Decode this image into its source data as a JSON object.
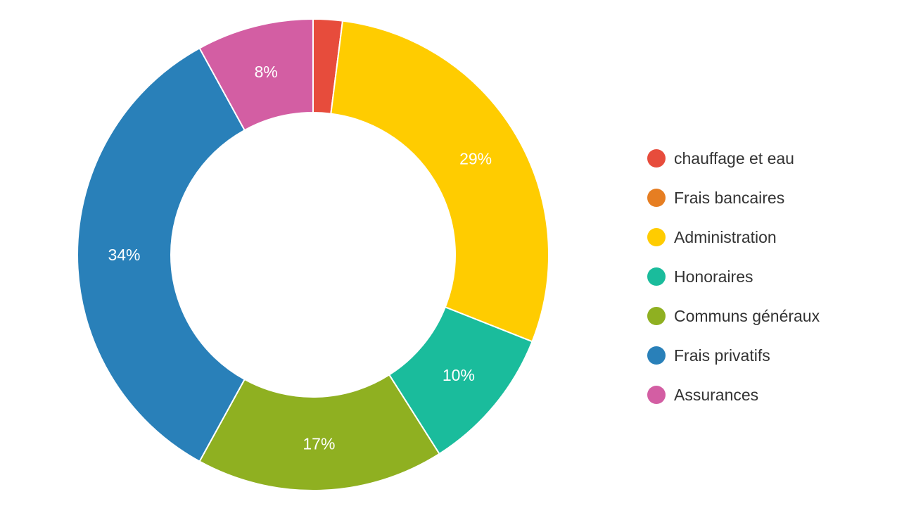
{
  "chart_data": {
    "type": "pie",
    "variant": "donut",
    "title": "",
    "categories": [
      "chauffage et eau",
      "Frais bancaires",
      "Administration",
      "Honoraires",
      "Communs généraux",
      "Frais privatifs",
      "Assurances"
    ],
    "values": [
      2,
      0,
      29,
      10,
      17,
      34,
      8
    ],
    "data_labels": [
      "",
      "",
      "29%",
      "10%",
      "17%",
      "34%",
      "8%"
    ],
    "colors": [
      "#e74c3c",
      "#e67e22",
      "#ffcc00",
      "#1abc9c",
      "#8fb021",
      "#2980b9",
      "#d35ea3"
    ],
    "legend": "right"
  }
}
